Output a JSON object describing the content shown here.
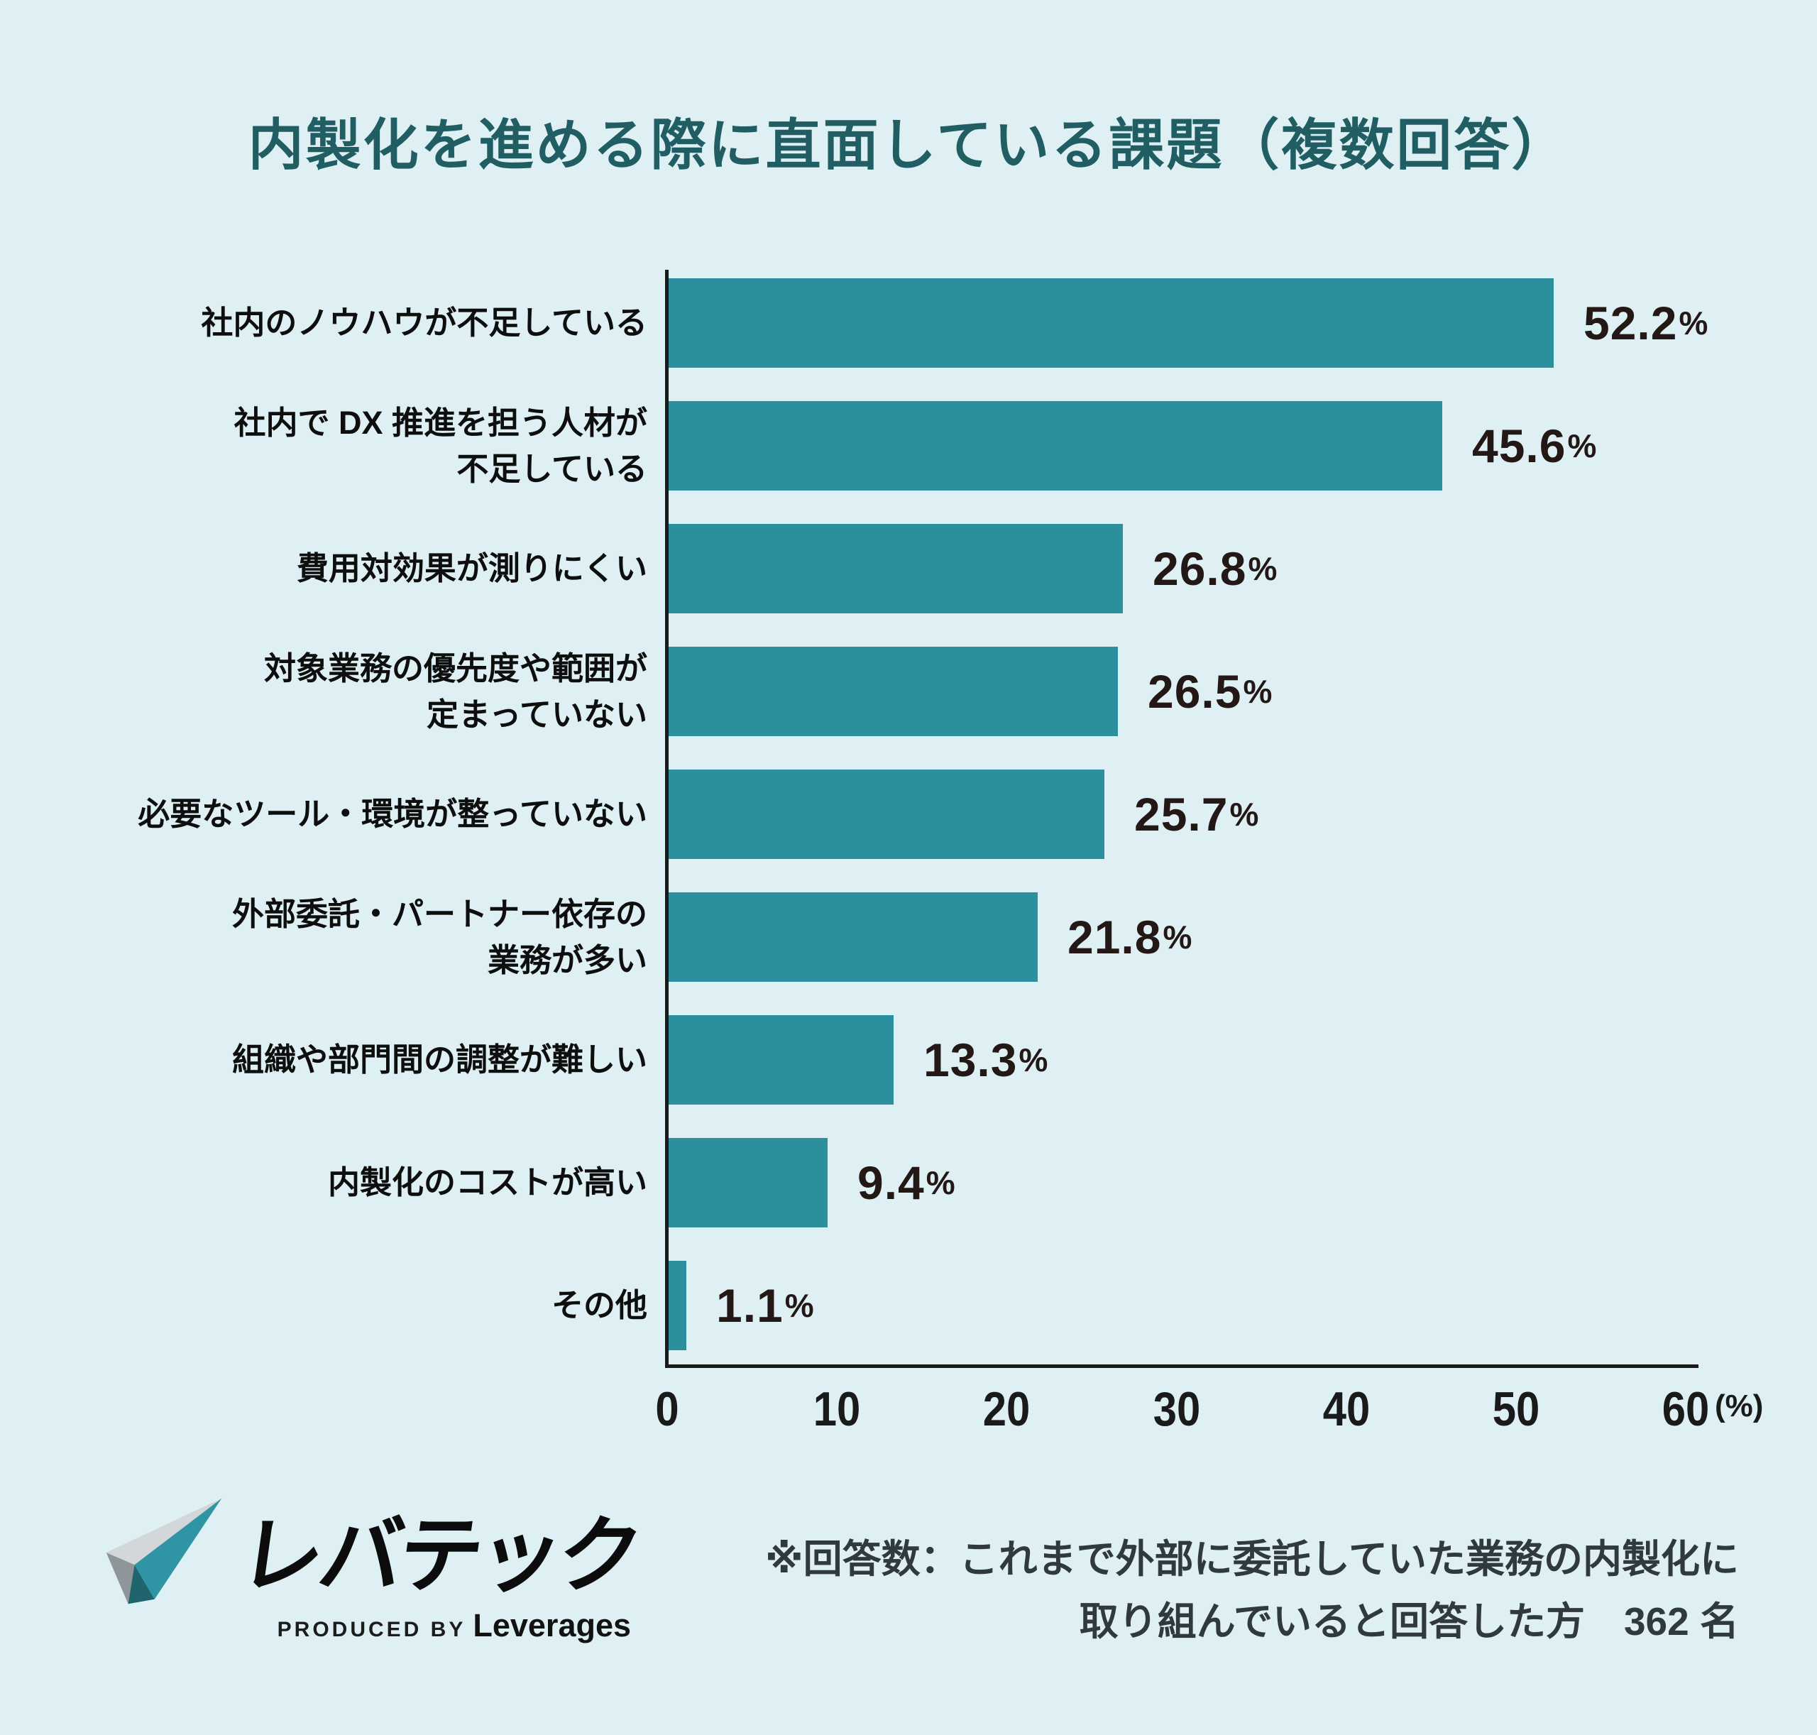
{
  "title": "内製化を進める際に直面している課題（複数回答）",
  "chart_data": {
    "type": "bar",
    "orientation": "horizontal",
    "title": "内製化を進める際に直面している課題（複数回答）",
    "categories": [
      "社内のノウハウが不足している",
      "社内で DX 推進を担う人材が\n不足している",
      "費用対効果が測りにくい",
      "対象業務の優先度や範囲が\n定まっていない",
      "必要なツール・環境が整っていない",
      "外部委託・パートナー依存の\n業務が多い",
      "組織や部門間の調整が難しい",
      "内製化のコストが高い",
      "その他"
    ],
    "values": [
      52.2,
      45.6,
      26.8,
      26.5,
      25.7,
      21.8,
      13.3,
      9.4,
      1.1
    ],
    "value_labels": [
      "52.2%",
      "45.6%",
      "26.8%",
      "26.5%",
      "25.7%",
      "21.8%",
      "13.3%",
      "9.4%",
      "1.1%"
    ],
    "unit": "%",
    "xlim": [
      0,
      60
    ],
    "x_ticks": [
      0,
      10,
      20,
      30,
      40,
      50,
      60
    ],
    "x_axis_unit_label": "(%)",
    "grid": false,
    "legend": "none",
    "bar_color": "#2b8f9e"
  },
  "footer": {
    "logo_brand": "レバテック",
    "logo_produced_by": "PRODUCED BY",
    "logo_company": "Leverages",
    "note_line1": "※回答数：これまで外部に委託していた業務の内製化に",
    "note_line2": "取り組んでいると回答した方　362 名"
  },
  "colors": {
    "background": "#def0f3",
    "bar": "#2b8f9e",
    "title": "#215e63",
    "value_label": "#231815",
    "category_label": "#0e0e0e",
    "axis": "#1a1a1a",
    "note": "#30393e",
    "logo_teal": "#2f95a5",
    "logo_teal_dark": "#20646e",
    "logo_gray_light": "#d3d7d9",
    "logo_gray_dark": "#8e969a"
  }
}
